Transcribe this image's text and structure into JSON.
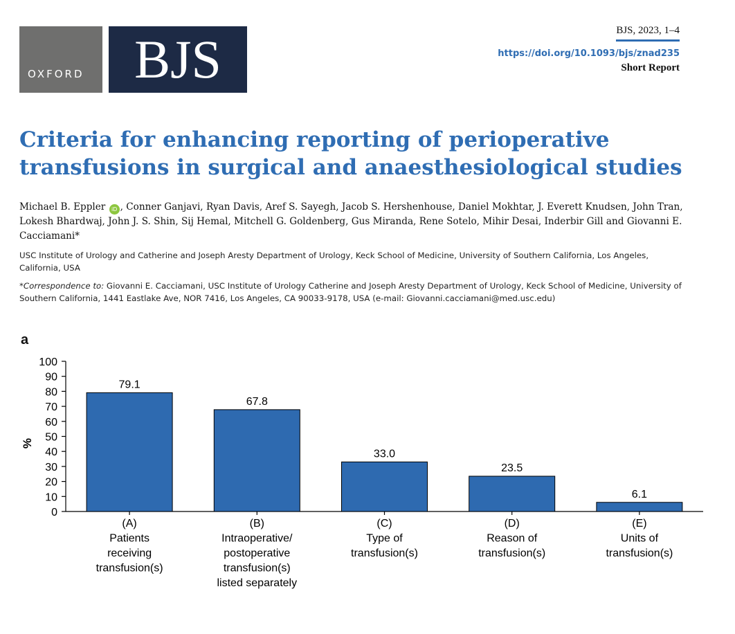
{
  "header": {
    "publisher_logo_text": "OXFORD",
    "journal_logo_text": "BJS",
    "citation": "BJS, 2023, 1–4",
    "doi": "https://doi.org/10.1093/bjs/znad235",
    "article_type": "Short Report",
    "orcid_badge": "iD"
  },
  "article": {
    "title": "Criteria for enhancing reporting of perioperative transfusions in surgical and anaesthesiological studies",
    "first_author": "Michael B. Eppler",
    "authors_rest": ", Conner Ganjavi, Ryan Davis, Aref S. Sayegh, Jacob S. Hershenhouse, Daniel Mokhtar, J. Everett Knudsen, John Tran, Lokesh Bhardwaj, John J. S. Shin, Sij Hemal, Mitchell G. Goldenberg, Gus Miranda, Rene Sotelo, Mihir Desai, Inderbir Gill and Giovanni E. Cacciamani*",
    "affiliation": "USC Institute of Urology and Catherine and Joseph Aresty Department of Urology, Keck School of Medicine, University of Southern California, Los Angeles, California, USA",
    "correspondence_label": "*Correspondence to:",
    "correspondence_text": " Giovanni E. Cacciamani, USC Institute of Urology Catherine and Joseph Aresty Department of Urology, Keck School of Medicine, University of Southern California, 1441 Eastlake Ave, NOR 7416, Los Angeles, CA 90033-9178, USA (e-mail: Giovanni.cacciamani@med.usc.edu)"
  },
  "figure": {
    "panel_label": "a"
  },
  "chart_data": {
    "type": "bar",
    "categories": [
      [
        "(A)",
        "Patients",
        "receiving",
        "transfusion(s)"
      ],
      [
        "(B)",
        "Intraoperative/",
        "postoperative",
        "transfusion(s)",
        "listed separately"
      ],
      [
        "(C)",
        "Type of",
        "transfusion(s)"
      ],
      [
        "(D)",
        "Reason of",
        "transfusion(s)"
      ],
      [
        "(E)",
        "Units of",
        "transfusion(s)"
      ]
    ],
    "values": [
      79.1,
      67.8,
      33.0,
      23.5,
      6.1
    ],
    "value_labels": [
      "79.1",
      "67.8",
      "33.0",
      "23.5",
      "6.1"
    ],
    "ylabel": "%",
    "xlabel": "",
    "ylim": [
      0,
      100
    ],
    "yticks": [
      0,
      10,
      20,
      30,
      40,
      50,
      60,
      70,
      80,
      90,
      100
    ],
    "bar_color": "#2e6ab0",
    "grid": false,
    "legend": "none"
  }
}
